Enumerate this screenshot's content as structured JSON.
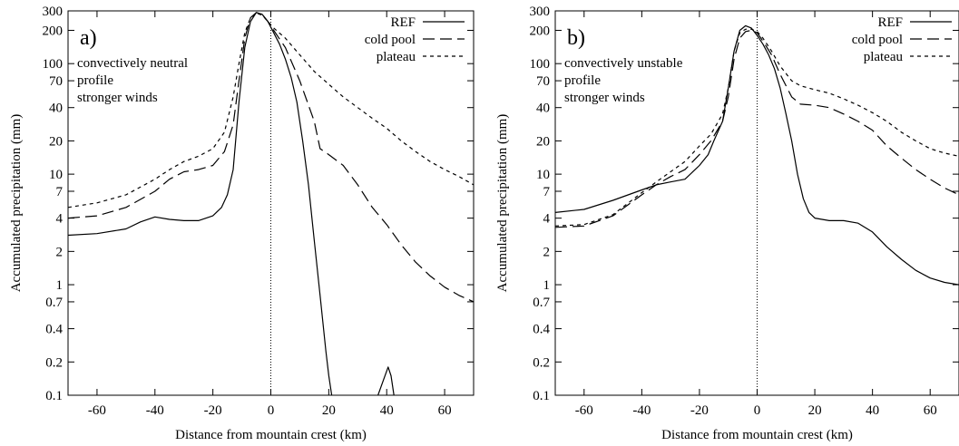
{
  "chart_data": [
    {
      "type": "line",
      "panel_label": "a)",
      "annotations": [
        "convectively neutral",
        "profile",
        "stronger winds"
      ],
      "xlabel": "Distance from mountain crest (km)",
      "ylabel": "Accumulated precipitation (mm)",
      "xlim": [
        -70,
        70
      ],
      "ylim": [
        0.1,
        300
      ],
      "yscale": "log",
      "xticks": [
        -60,
        -40,
        -20,
        0,
        20,
        40,
        60
      ],
      "yticks": [
        0.1,
        0.2,
        0.4,
        0.7,
        1,
        2,
        4,
        7,
        10,
        20,
        40,
        70,
        100,
        200,
        300
      ],
      "ytick_labels": [
        "0.1",
        "0.2",
        "0.4",
        "0.7",
        "1",
        "2",
        "4",
        "7",
        "10",
        "20",
        "40",
        "70",
        "100",
        "200",
        "300"
      ],
      "vline_x": 0,
      "legend_position": "top-right",
      "series": [
        {
          "name": "REF",
          "style": "solid",
          "x": [
            -70,
            -60,
            -50,
            -45,
            -40,
            -35,
            -30,
            -25,
            -20,
            -17,
            -15,
            -13,
            -11,
            -9,
            -7,
            -5,
            -3,
            -1,
            1,
            3,
            5,
            7,
            9,
            11,
            13,
            15,
            17,
            19,
            20,
            21
          ],
          "y": [
            2.8,
            2.9,
            3.2,
            3.7,
            4.1,
            3.9,
            3.8,
            3.8,
            4.2,
            5.0,
            6.5,
            11,
            45,
            140,
            240,
            290,
            280,
            240,
            190,
            150,
            110,
            75,
            45,
            20,
            8,
            2.5,
            0.8,
            0.25,
            0.15,
            0.1
          ]
        },
        {
          "name": "REF",
          "style": "solid",
          "x": [
            37,
            39,
            40.5,
            41.5,
            42.5
          ],
          "y": [
            0.1,
            0.14,
            0.18,
            0.15,
            0.1
          ]
        },
        {
          "name": "cold pool",
          "style": "dashed",
          "x": [
            -70,
            -60,
            -50,
            -40,
            -35,
            -30,
            -25,
            -20,
            -16,
            -13,
            -11,
            -9,
            -7,
            -5,
            -3,
            -1,
            1,
            5,
            10,
            15,
            17,
            20,
            25,
            30,
            35,
            40,
            45,
            50,
            55,
            60,
            65,
            70
          ],
          "y": [
            4,
            4.2,
            5,
            7,
            9,
            10.5,
            11,
            12,
            16,
            28,
            70,
            170,
            260,
            290,
            280,
            240,
            200,
            140,
            70,
            30,
            17,
            15,
            12,
            8,
            5,
            3.5,
            2.3,
            1.6,
            1.2,
            0.95,
            0.8,
            0.7
          ]
        },
        {
          "name": "plateau",
          "style": "dotted",
          "x": [
            -70,
            -60,
            -50,
            -40,
            -35,
            -30,
            -25,
            -20,
            -16,
            -13,
            -11,
            -9,
            -7,
            -5,
            -3,
            -1,
            1,
            5,
            10,
            15,
            20,
            25,
            30,
            35,
            40,
            45,
            50,
            55,
            60,
            65,
            70
          ],
          "y": [
            5,
            5.5,
            6.5,
            9,
            11,
            13,
            14.5,
            17,
            24,
            50,
            100,
            190,
            260,
            285,
            275,
            240,
            210,
            170,
            120,
            85,
            65,
            50,
            40,
            32,
            26,
            20,
            16,
            13,
            11,
            9.5,
            8
          ]
        }
      ]
    },
    {
      "type": "line",
      "panel_label": "b)",
      "annotations": [
        "convectively unstable",
        "profile",
        "stronger winds"
      ],
      "xlabel": "Distance from mountain crest (km)",
      "ylabel": "Accumulated precipitation (mm)",
      "xlim": [
        -70,
        70
      ],
      "ylim": [
        0.1,
        300
      ],
      "yscale": "log",
      "xticks": [
        -60,
        -40,
        -20,
        0,
        20,
        40,
        60
      ],
      "yticks": [
        0.1,
        0.2,
        0.4,
        0.7,
        1,
        2,
        4,
        7,
        10,
        20,
        40,
        70,
        100,
        200,
        300
      ],
      "ytick_labels": [
        "0.1",
        "0.2",
        "0.4",
        "0.7",
        "1",
        "2",
        "4",
        "7",
        "10",
        "20",
        "40",
        "70",
        "100",
        "200",
        "300"
      ],
      "vline_x": 0,
      "legend_position": "top-right",
      "series": [
        {
          "name": "REF",
          "style": "solid",
          "x": [
            -70,
            -60,
            -50,
            -40,
            -35,
            -30,
            -25,
            -20,
            -17,
            -15,
            -12,
            -10,
            -8,
            -6,
            -4,
            -2,
            0,
            2,
            4,
            6,
            8,
            10,
            12,
            14,
            16,
            18,
            20,
            25,
            30,
            35,
            40,
            45,
            50,
            55,
            60,
            65,
            70
          ],
          "y": [
            4.5,
            4.8,
            5.8,
            7.2,
            8,
            8.5,
            9,
            12,
            15,
            20,
            30,
            60,
            130,
            200,
            220,
            210,
            180,
            150,
            120,
            90,
            60,
            35,
            20,
            10,
            6,
            4.5,
            4,
            3.8,
            3.8,
            3.6,
            3,
            2.2,
            1.7,
            1.35,
            1.15,
            1.05,
            1.0
          ]
        },
        {
          "name": "cold pool",
          "style": "dashed",
          "x": [
            -70,
            -60,
            -50,
            -40,
            -35,
            -30,
            -25,
            -20,
            -16,
            -12,
            -10,
            -8,
            -6,
            -4,
            -2,
            0,
            2,
            5,
            8,
            12,
            15,
            20,
            25,
            30,
            35,
            40,
            45,
            50,
            55,
            60,
            65,
            70
          ],
          "y": [
            3.3,
            3.4,
            4.2,
            6.5,
            8,
            9.5,
            11,
            15,
            20,
            30,
            50,
            110,
            170,
            195,
            200,
            190,
            160,
            120,
            80,
            50,
            43,
            42,
            40,
            35,
            30,
            25,
            18,
            14,
            11,
            9,
            7.5,
            6.5
          ]
        },
        {
          "name": "plateau",
          "style": "dotted",
          "x": [
            -70,
            -60,
            -50,
            -40,
            -35,
            -30,
            -25,
            -20,
            -16,
            -12,
            -10,
            -8,
            -6,
            -4,
            -2,
            0,
            2,
            5,
            8,
            12,
            15,
            20,
            25,
            30,
            35,
            40,
            45,
            50,
            55,
            60,
            65,
            70
          ],
          "y": [
            3.4,
            3.5,
            4.3,
            6.8,
            8.5,
            10.5,
            13,
            18,
            23,
            35,
            60,
            130,
            190,
            205,
            205,
            195,
            170,
            130,
            95,
            70,
            63,
            58,
            54,
            48,
            42,
            36,
            30,
            24,
            20,
            17,
            15.5,
            14.5
          ]
        }
      ]
    }
  ]
}
